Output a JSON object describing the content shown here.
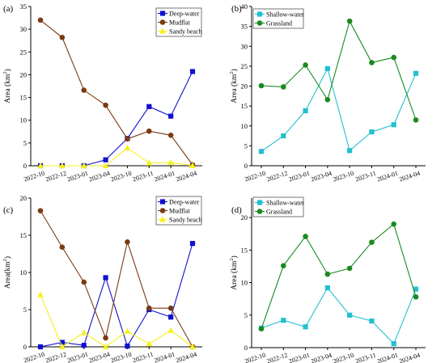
{
  "chart_data": [
    {
      "type": "line",
      "panel_label": "(a)",
      "ylabel": "Area (km",
      "ylabel_sup": "2",
      "ylabel_close": ")",
      "ylim": [
        0,
        35
      ],
      "yticks": [
        0,
        5,
        10,
        15,
        20,
        25,
        30,
        35
      ],
      "categories": [
        "2022-10",
        "2022-12",
        "2023-01",
        "2023-04",
        "2023-10",
        "2023-11",
        "2024-01",
        "2024-04"
      ],
      "legend_position": "top-right",
      "series": [
        {
          "name": "Deep-water",
          "color": "#1010d0",
          "marker": "square",
          "values": [
            0.0,
            0.0,
            0.0,
            1.3,
            6.0,
            13.0,
            10.9,
            20.7
          ]
        },
        {
          "name": "Mudflat",
          "color": "#7a3b12",
          "marker": "circle",
          "values": [
            32.0,
            28.2,
            16.6,
            13.3,
            5.9,
            7.6,
            6.7,
            0.2
          ]
        },
        {
          "name": "Sandy beach",
          "color": "#f5f020",
          "marker": "triangle",
          "values": [
            0.0,
            0.0,
            0.0,
            0.0,
            3.9,
            0.6,
            0.7,
            0.0
          ]
        }
      ]
    },
    {
      "type": "line",
      "panel_label": "(b)",
      "ylabel": "Area (km",
      "ylabel_sup": "2",
      "ylabel_close": ")",
      "ylim": [
        0,
        40
      ],
      "yticks": [
        0,
        5,
        10,
        15,
        20,
        25,
        30,
        35,
        40
      ],
      "categories": [
        "2022-10",
        "2022-12",
        "2023-01",
        "2023-04",
        "2023-10",
        "2023-11",
        "2024-01",
        "2024-04"
      ],
      "legend_position": "top-left",
      "series": [
        {
          "name": "Shallow-water",
          "color": "#22c0d0",
          "marker": "square",
          "values": [
            3.6,
            7.5,
            13.8,
            24.4,
            3.8,
            8.5,
            10.3,
            23.2
          ]
        },
        {
          "name": "Grassland",
          "color": "#1a8a20",
          "marker": "circle",
          "values": [
            20.1,
            19.8,
            25.3,
            16.6,
            36.3,
            25.9,
            27.2,
            11.5
          ]
        }
      ]
    },
    {
      "type": "line",
      "panel_label": "(c)",
      "ylabel": "Area(km",
      "ylabel_sup": "2",
      "ylabel_close": ")",
      "ylim": [
        0,
        20
      ],
      "yticks": [
        0,
        5,
        10,
        15,
        20
      ],
      "categories": [
        "2022-10",
        "2022-12",
        "2023-01",
        "2023-04",
        "2023-10",
        "2023-11",
        "2024-01",
        "2024-04"
      ],
      "legend_position": "top-right",
      "series": [
        {
          "name": "Deep-water",
          "color": "#1010d0",
          "marker": "square",
          "values": [
            0.0,
            0.6,
            0.2,
            9.3,
            0.1,
            5.0,
            4.0,
            13.9
          ]
        },
        {
          "name": "Mudflat",
          "color": "#7a3b12",
          "marker": "circle",
          "values": [
            18.3,
            13.4,
            8.7,
            1.2,
            14.1,
            5.2,
            5.2,
            0.0
          ]
        },
        {
          "name": "Sandy beach",
          "color": "#f5f020",
          "marker": "triangle",
          "values": [
            7.0,
            0.0,
            1.9,
            0.0,
            2.1,
            0.4,
            2.2,
            0.0
          ]
        }
      ]
    },
    {
      "type": "line",
      "panel_label": "(d)",
      "ylabel": "Area (km",
      "ylabel_sup": "2",
      "ylabel_close": ")",
      "ylim": [
        0,
        23
      ],
      "yticks": [
        0,
        5,
        10,
        15,
        20
      ],
      "categories": [
        "2022-10",
        "2022-12",
        "2023-01",
        "2023-04",
        "2023-10",
        "2023-11",
        "2024-01",
        "2024-04"
      ],
      "legend_position": "top-left",
      "series": [
        {
          "name": "Shallow-water",
          "color": "#22c0d0",
          "marker": "square",
          "values": [
            3.0,
            4.2,
            3.2,
            9.2,
            5.0,
            4.1,
            0.6,
            9.0
          ]
        },
        {
          "name": "Grassland",
          "color": "#1a8a20",
          "marker": "circle",
          "values": [
            2.9,
            12.6,
            17.1,
            11.3,
            12.2,
            16.2,
            19.0,
            7.8
          ]
        }
      ]
    }
  ]
}
